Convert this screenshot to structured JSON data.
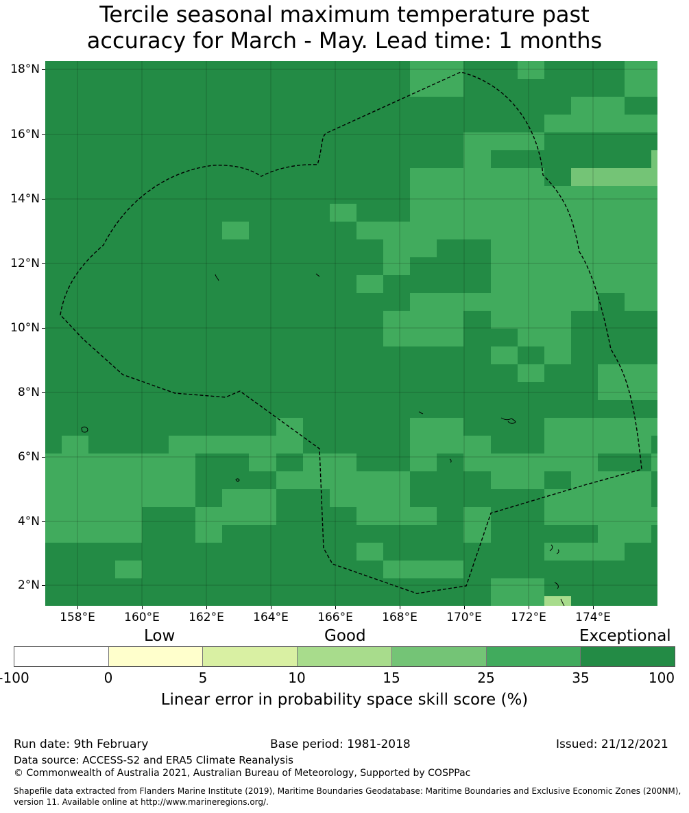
{
  "title": {
    "line1": "Tercile seasonal maximum temperature past",
    "line2": "accuracy for March - May. Lead time: 1 months"
  },
  "map": {
    "lat_labels": [
      "18°N",
      "16°N",
      "14°N",
      "12°N",
      "10°N",
      "8°N",
      "6°N",
      "4°N",
      "2°N"
    ],
    "lon_labels": [
      "158°E",
      "160°E",
      "162°E",
      "164°E",
      "166°E",
      "168°E",
      "170°E",
      "172°E",
      "174°E"
    ],
    "colors": {
      "level_35_100": "#238b45",
      "level_25_35": "#41ab5d",
      "level_15_25": "#74c476",
      "level_10_15": "#a8dc8c",
      "level_5_10": "#d9f0a3",
      "level_0_5": "#ffffcc",
      "level_neg": "#ffffff"
    }
  },
  "colorbar": {
    "categories": {
      "low": "Low",
      "good": "Good",
      "exceptional": "Exceptional"
    },
    "ticks": [
      "-100",
      "0",
      "5",
      "10",
      "15",
      "25",
      "35",
      "100"
    ],
    "label": "Linear error in probability space skill score (%)"
  },
  "footer": {
    "run_date": "Run date: 9th February",
    "base_period": "Base period: 1981-2018",
    "issued": "Issued: 21/12/2021",
    "data_source": "Data source: ACCESS-S2 and ERA5 Climate Reanalysis",
    "copyright": "© Commonwealth of Australia 2021, Australian Bureau of Meteorology, Supported by COSPPac",
    "shapefile_line1": "Shapefile data extracted from Flanders Marine Institute (2019), Maritime Boundaries Geodatabase: Maritime Boundaries and Exclusive Economic Zones (200NM),",
    "shapefile_line2": "version 11. Available online at http://www.marineregions.org/."
  }
}
